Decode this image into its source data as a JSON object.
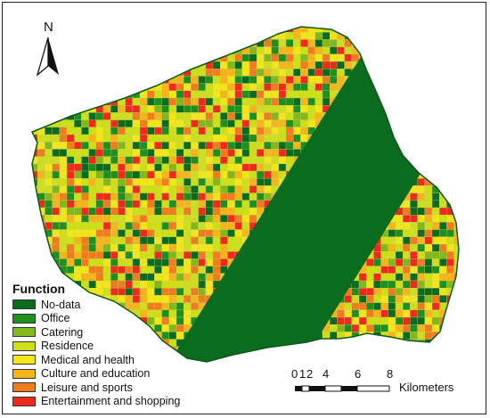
{
  "north_label": "N",
  "legend": {
    "title": "Function",
    "items": [
      {
        "label": "No-data",
        "color": "#0b6b1e"
      },
      {
        "label": "Office",
        "color": "#1f8f1f"
      },
      {
        "label": "Catering",
        "color": "#82b81c"
      },
      {
        "label": "Residence",
        "color": "#cddf19"
      },
      {
        "label": "Medical and health",
        "color": "#f2e61a"
      },
      {
        "label": "Culture and education",
        "color": "#f5b51a"
      },
      {
        "label": "Leisure and sports",
        "color": "#f07c1e"
      },
      {
        "label": "Entertainment and shopping",
        "color": "#ee2a1c"
      }
    ]
  },
  "scale": {
    "ticks": [
      "0",
      "1",
      "2",
      "4",
      "6",
      "8"
    ],
    "unit": "Kilometers"
  }
}
